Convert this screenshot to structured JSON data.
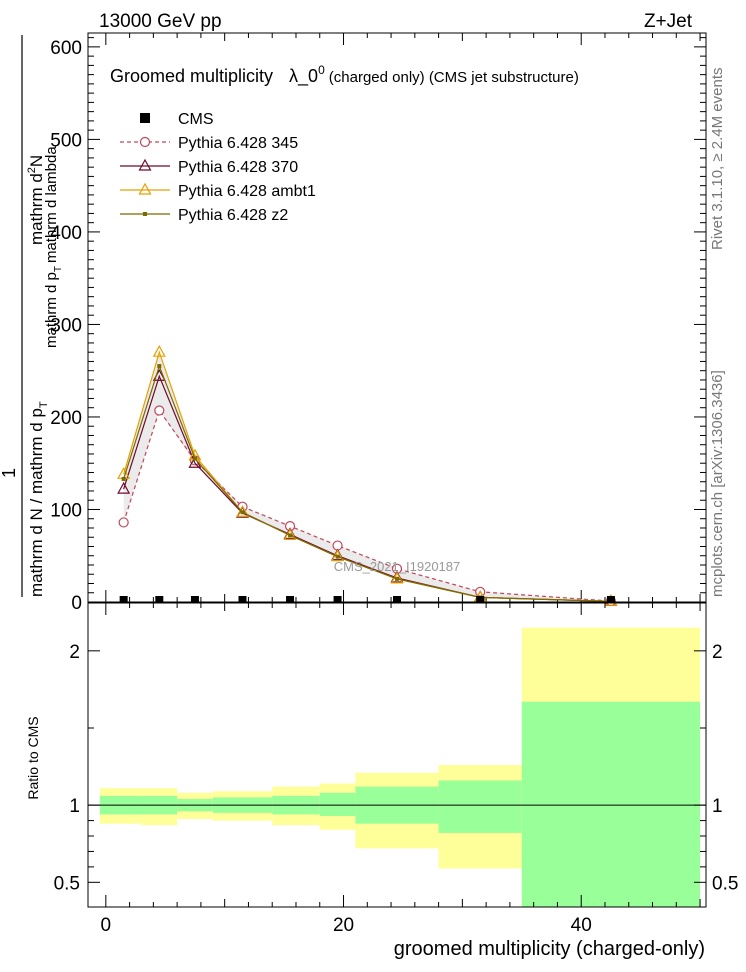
{
  "header": {
    "energy": "13000 GeV pp",
    "process": "Z+Jet",
    "rivet": "Rivet 3.1.10, ≥ 2.4M events",
    "source": "mcplots.cern.ch [arXiv:1306.3436]"
  },
  "watermark": "CMS_2021_I1920187",
  "chart_data": [
    {
      "type": "line",
      "title": {
        "prefix": "Groomed multiplicity",
        "lambda": "λ_0",
        "sup": "0",
        "suffix": "(charged only) (CMS jet substructure)"
      },
      "ylabel": {
        "one": "1",
        "lower": "mathrm d N / mathrm d p",
        "lower_sub": "T",
        "upper": "mathrm d",
        "upper_sup": "2",
        "upper_rest": "N",
        "denom_a": "mathrm d p",
        "denom_sub": "T",
        "denom_b": "mathrm d lambda"
      },
      "xlim": [
        -1.5,
        50.5
      ],
      "ylim": [
        0,
        615
      ],
      "yticks": [
        0,
        100,
        200,
        300,
        400,
        500,
        600
      ],
      "ytick_labels": [
        "0",
        "100",
        "200",
        "300",
        "400",
        "500",
        "600"
      ],
      "bins": [
        [
          0,
          3
        ],
        [
          3,
          6
        ],
        [
          6,
          9
        ],
        [
          9,
          14
        ],
        [
          14,
          18
        ],
        [
          18,
          21
        ],
        [
          21,
          28
        ],
        [
          28,
          35
        ],
        [
          35,
          50
        ]
      ],
      "x": [
        1.5,
        4.5,
        7.5,
        11.5,
        15.5,
        19.5,
        24.5,
        31.5,
        42.5
      ],
      "legend": [
        "CMS",
        "Pythia 6.428 345",
        "Pythia 6.428 370",
        "Pythia 6.428 ambt1",
        "Pythia 6.428 z2"
      ],
      "series": [
        {
          "name": "CMS",
          "color": "#000000",
          "marker": "square",
          "values": [
            0,
            0,
            0,
            0,
            0,
            0,
            0,
            0,
            0
          ]
        },
        {
          "name": "Pythia 6.428 345",
          "color": "#c0465a",
          "marker": "circle",
          "dashed": true,
          "values": [
            86,
            207,
            153,
            103,
            82,
            61,
            36,
            11,
            1
          ]
        },
        {
          "name": "Pythia 6.428 370",
          "color": "#6e0a2a",
          "marker": "triangle",
          "values": [
            122,
            244,
            150,
            96,
            73,
            50,
            26,
            5,
            0.6
          ]
        },
        {
          "name": "Pythia 6.428 ambt1",
          "color": "#e8a000",
          "marker": "triangle",
          "values": [
            138,
            270,
            158,
            97,
            72,
            49,
            25,
            5,
            0.8
          ]
        },
        {
          "name": "Pythia 6.428 z2",
          "color": "#7a6a00",
          "marker": "dot",
          "values": [
            133,
            255,
            155,
            97,
            72,
            49,
            25,
            5,
            0.7
          ]
        }
      ]
    },
    {
      "type": "area",
      "xlabel": "groomed multiplicity (charged-only)",
      "ylabel": "Ratio to CMS",
      "xlim": [
        -1.5,
        50.5
      ],
      "ylim": [
        0.34,
        2.31
      ],
      "yticks": [
        0.5,
        1,
        2
      ],
      "ytick_labels": [
        "0.5",
        "1",
        "2"
      ],
      "xticks": [
        0,
        20,
        40
      ],
      "xtick_labels": [
        "0",
        "20",
        "40"
      ],
      "band_colors": {
        "total": "#ffff99",
        "stat": "#99ff99"
      },
      "bands": [
        {
          "bin": [
            -0.5,
            3
          ],
          "total": [
            0.88,
            1.11
          ],
          "stat": [
            0.94,
            1.06
          ]
        },
        {
          "bin": [
            3,
            6
          ],
          "total": [
            0.87,
            1.11
          ],
          "stat": [
            0.94,
            1.06
          ]
        },
        {
          "bin": [
            6,
            9
          ],
          "total": [
            0.91,
            1.08
          ],
          "stat": [
            0.96,
            1.04
          ]
        },
        {
          "bin": [
            9,
            14
          ],
          "total": [
            0.9,
            1.09
          ],
          "stat": [
            0.95,
            1.05
          ]
        },
        {
          "bin": [
            14,
            18
          ],
          "total": [
            0.87,
            1.12
          ],
          "stat": [
            0.94,
            1.06
          ]
        },
        {
          "bin": [
            18,
            21
          ],
          "total": [
            0.84,
            1.14
          ],
          "stat": [
            0.93,
            1.08
          ]
        },
        {
          "bin": [
            21,
            28
          ],
          "total": [
            0.72,
            1.21
          ],
          "stat": [
            0.88,
            1.12
          ]
        },
        {
          "bin": [
            28,
            35
          ],
          "total": [
            0.59,
            1.26
          ],
          "stat": [
            0.82,
            1.16
          ]
        },
        {
          "bin": [
            35,
            50
          ],
          "total": [
            0.34,
            2.15
          ],
          "stat": [
            0.34,
            1.67
          ]
        }
      ]
    }
  ]
}
